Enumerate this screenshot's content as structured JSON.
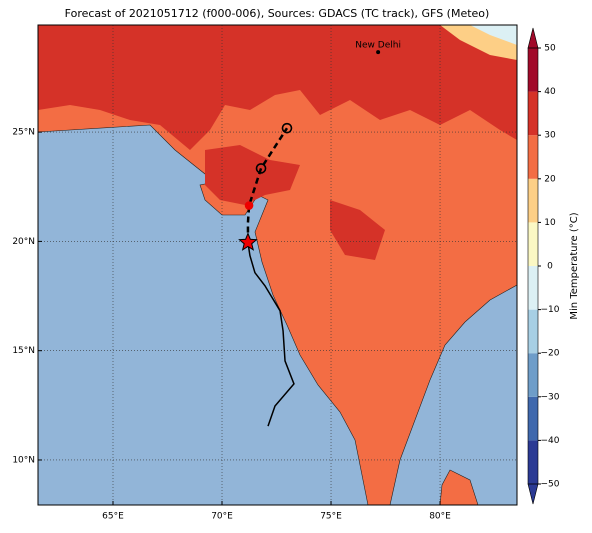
{
  "map": {
    "title": "Forecast of 2021051712 (f000-006), Sources: GDACS (TC track), GFS (Meteo)",
    "lonlim": [
      61.56,
      83.53
    ],
    "latlim": [
      7.94,
      29.9
    ],
    "xticks": [
      {
        "value": 65,
        "label": "65°E"
      },
      {
        "value": 70,
        "label": "70°E"
      },
      {
        "value": 75,
        "label": "75°E"
      },
      {
        "value": 80,
        "label": "80°E"
      }
    ],
    "yticks": [
      {
        "value": 10,
        "label": "10°N"
      },
      {
        "value": 15,
        "label": "15°N"
      },
      {
        "value": 20,
        "label": "20°N"
      },
      {
        "value": 25,
        "label": "25°N"
      }
    ],
    "grid": true,
    "colorbar": {
      "label": "Min Temperature (°C)",
      "ticks": [
        {
          "value": -50,
          "label": "−50"
        },
        {
          "value": -40,
          "label": "−40"
        },
        {
          "value": -30,
          "label": "−30"
        },
        {
          "value": -20,
          "label": "−20"
        },
        {
          "value": -10,
          "label": "−10"
        },
        0,
        10,
        20,
        30,
        40,
        50
      ],
      "colors": [
        "#2b3a94",
        "#3f68ad",
        "#6e9dc9",
        "#a7cfe4",
        "#dcf0f4",
        "#fbf8c4",
        "#fdcf86",
        "#f36d44",
        "#d53228",
        "#a10a2a"
      ]
    },
    "city": {
      "name": "New Delhi",
      "lon": 77.16,
      "lat": 28.66
    },
    "observed_track": {
      "lon": [
        72.11,
        72.43,
        73.3,
        72.89,
        72.8,
        72.66,
        71.97,
        71.51,
        71.28,
        71.19
      ],
      "lat": [
        11.55,
        12.47,
        13.48,
        14.53,
        15.91,
        16.83,
        17.97,
        18.57,
        19.35,
        19.95
      ]
    },
    "forecast_track": {
      "lon": [
        71.19,
        71.19,
        71.24,
        71.79,
        72.98
      ],
      "lat": [
        19.95,
        20.86,
        21.64,
        23.34,
        25.18
      ]
    },
    "storm_position": {
      "lon": 71.19,
      "lat": 19.95
    }
  }
}
